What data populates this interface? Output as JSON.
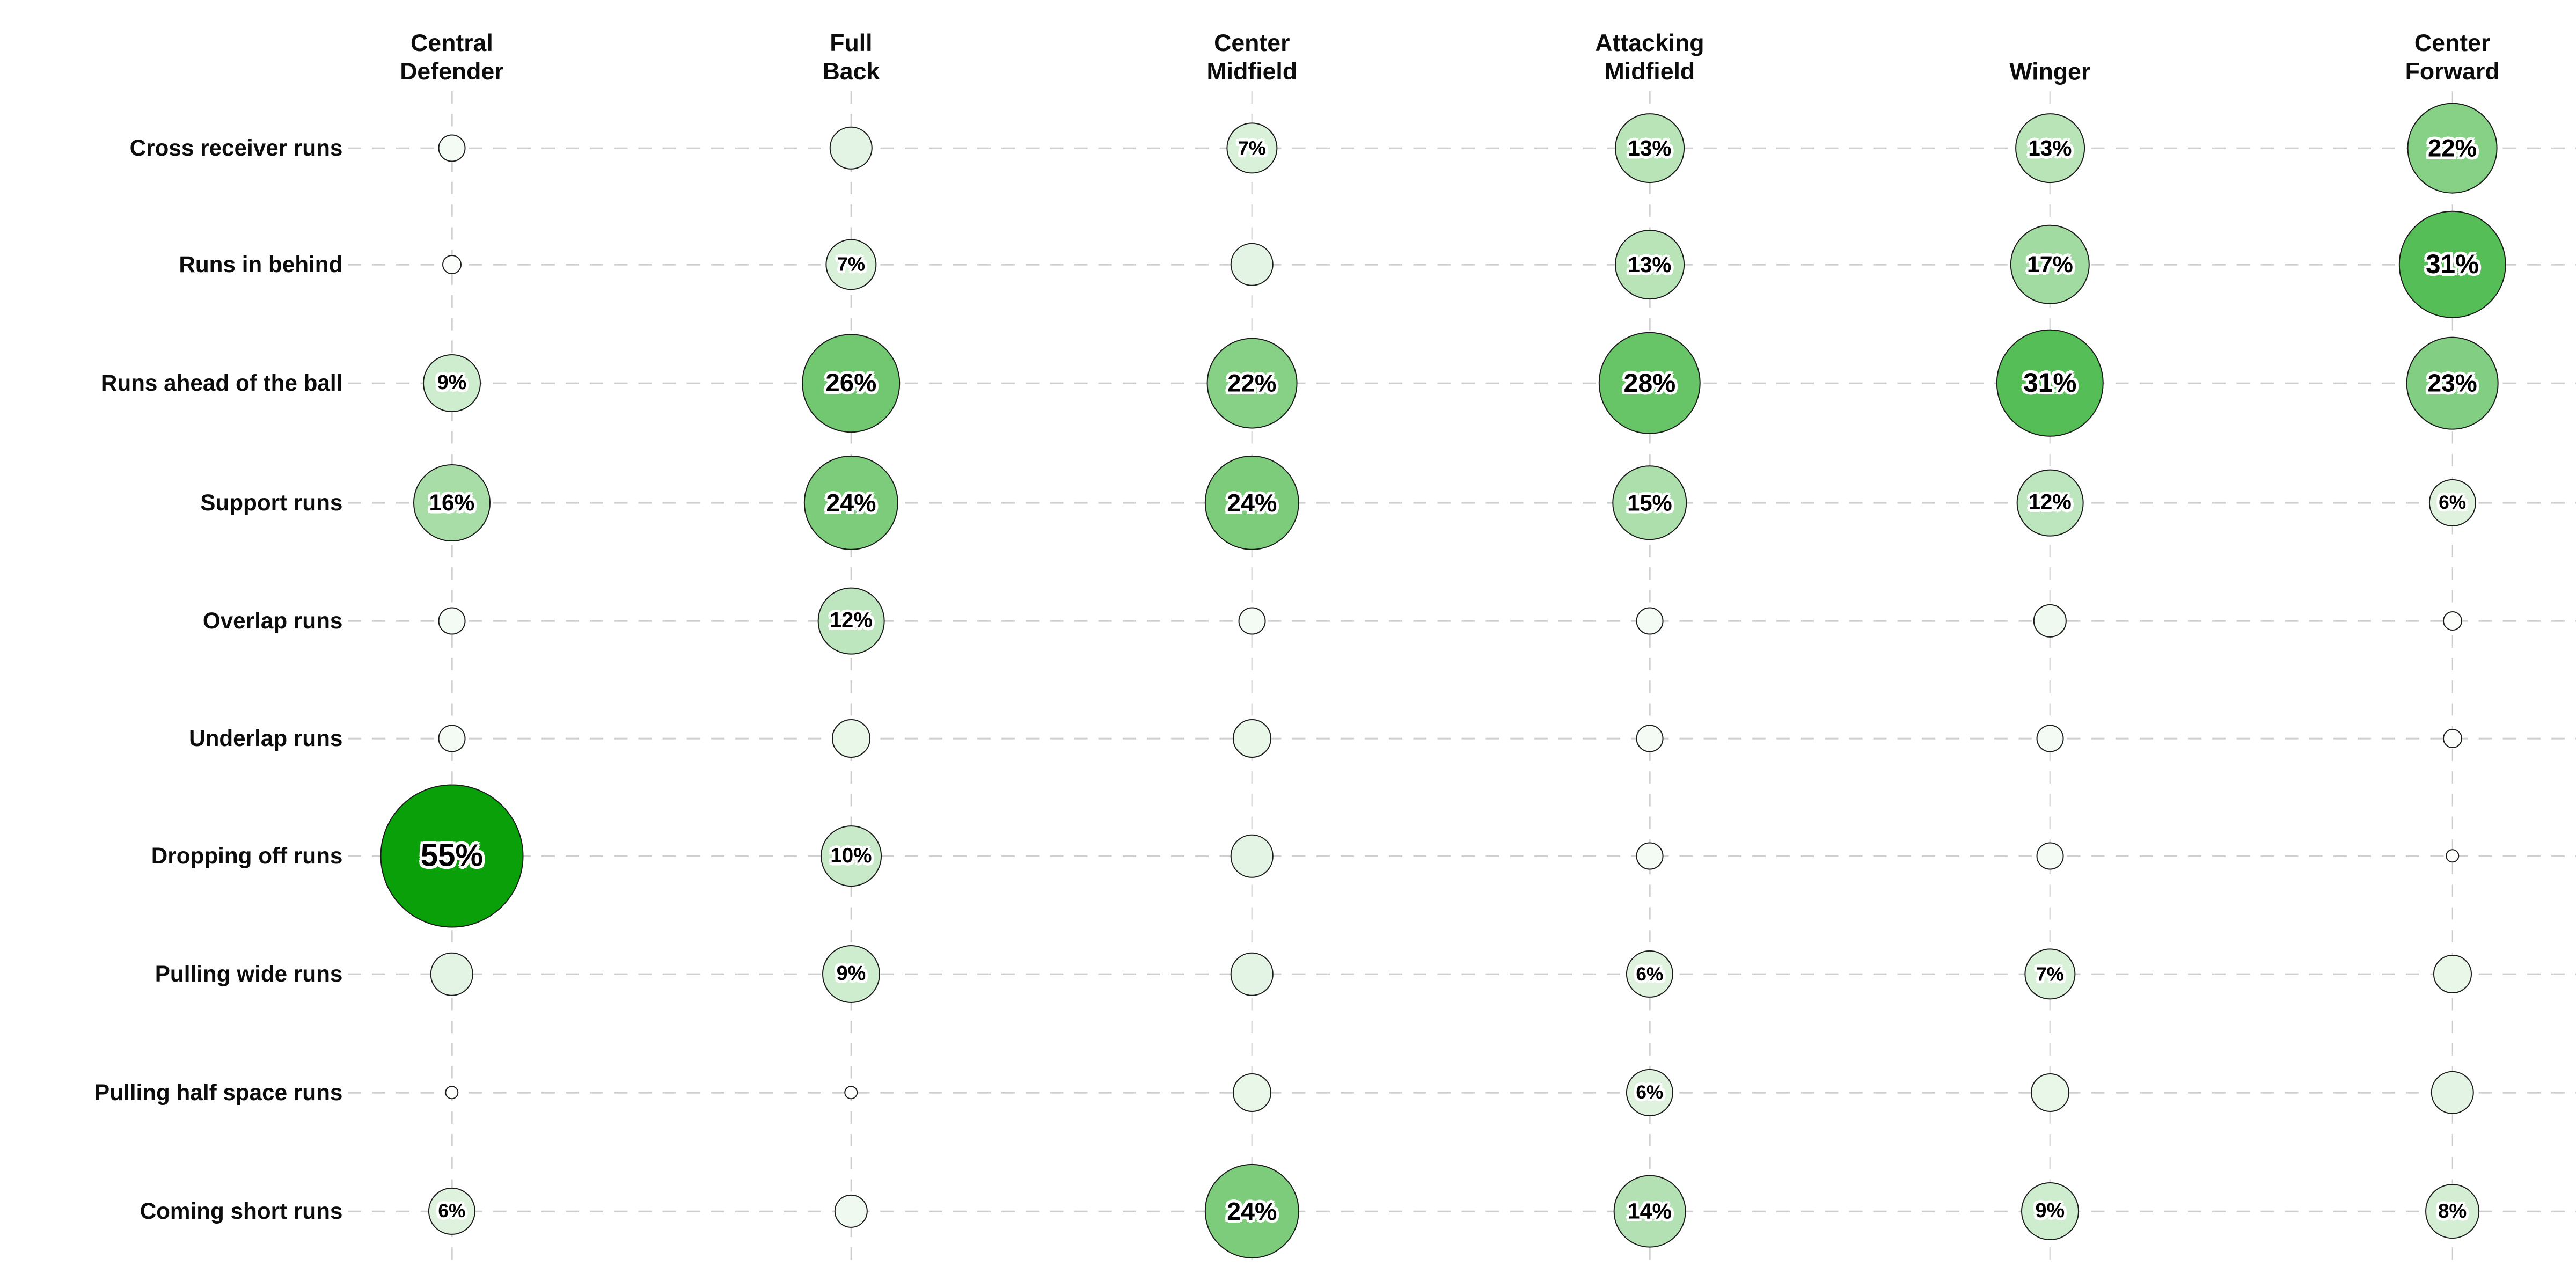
{
  "chart_data": {
    "type": "bubble-matrix",
    "title": "",
    "unit": "%",
    "columns": [
      {
        "name": "central-defender",
        "lines": [
          "Central",
          "Defender"
        ]
      },
      {
        "name": "full-back",
        "lines": [
          "Full",
          "Back"
        ]
      },
      {
        "name": "center-midfield",
        "lines": [
          "Center",
          "Midfield"
        ]
      },
      {
        "name": "attacking-midfield",
        "lines": [
          "Attacking",
          "Midfield"
        ]
      },
      {
        "name": "winger",
        "lines": [
          "Winger"
        ]
      },
      {
        "name": "center-forward",
        "lines": [
          "Center",
          "Forward"
        ]
      }
    ],
    "rows": [
      "Cross receiver runs",
      "Runs in behind",
      "Runs ahead of the ball",
      "Support runs",
      "Overlap runs",
      "Underlap runs",
      "Dropping off runs",
      "Pulling wide runs",
      "Pulling half space runs",
      "Coming short runs"
    ],
    "values": [
      [
        2,
        5,
        7,
        13,
        13,
        22
      ],
      [
        1,
        7,
        5,
        13,
        17,
        31
      ],
      [
        9,
        26,
        22,
        28,
        31,
        23
      ],
      [
        16,
        24,
        24,
        15,
        12,
        6
      ],
      [
        2,
        12,
        2,
        2,
        3,
        1
      ],
      [
        2,
        4,
        4,
        2,
        2,
        1
      ],
      [
        55,
        10,
        5,
        2,
        2,
        0.5
      ],
      [
        5,
        9,
        5,
        6,
        7,
        4
      ],
      [
        0.5,
        0.5,
        4,
        6,
        4,
        5
      ],
      [
        6,
        3,
        24,
        14,
        9,
        8
      ]
    ],
    "labels": [
      [
        "",
        "",
        "7%",
        "13%",
        "13%",
        "22%"
      ],
      [
        "",
        "7%",
        "",
        "13%",
        "17%",
        "31%"
      ],
      [
        "9%",
        "26%",
        "22%",
        "28%",
        "31%",
        "23%"
      ],
      [
        "16%",
        "24%",
        "24%",
        "15%",
        "12%",
        "6%"
      ],
      [
        "",
        "12%",
        "",
        "",
        "",
        ""
      ],
      [
        "",
        "",
        "",
        "",
        "",
        ""
      ],
      [
        "55%",
        "10%",
        "",
        "",
        "",
        ""
      ],
      [
        "",
        "9%",
        "",
        "6%",
        "7%",
        ""
      ],
      [
        "",
        "",
        "",
        "6%",
        "",
        ""
      ],
      [
        "6%",
        "",
        "24%",
        "14%",
        "9%",
        "8%"
      ]
    ],
    "label_threshold_pct": 6,
    "layout": {
      "grid": true,
      "legend": "none",
      "col_x_pct": [
        17.54,
        33.04,
        48.6,
        64.04,
        79.58,
        95.2
      ],
      "row_y_pct": [
        11.5,
        20.54,
        29.75,
        39.04,
        48.21,
        57.33,
        66.46,
        75.63,
        84.83,
        94.04
      ],
      "label_col_width_pct": 13.3,
      "header_bottom_pct": 6.7,
      "grid_top_pct": 7.1,
      "grid_bottom_pct": 98.1,
      "diameter_vw_per_sqrt_pct": 0.75
    },
    "colors": {
      "background": "#ffffff",
      "bubble_fill_min": "#ffffff",
      "bubble_fill_max": "#0aa00a",
      "color_scale_cap_pct": 45,
      "bubble_border": "#1b1b1b",
      "gridline": "#cfcfcf",
      "text": "#0c0c0c",
      "bubble_label_text": "#000000",
      "bubble_label_halo": "#ffffff"
    }
  }
}
